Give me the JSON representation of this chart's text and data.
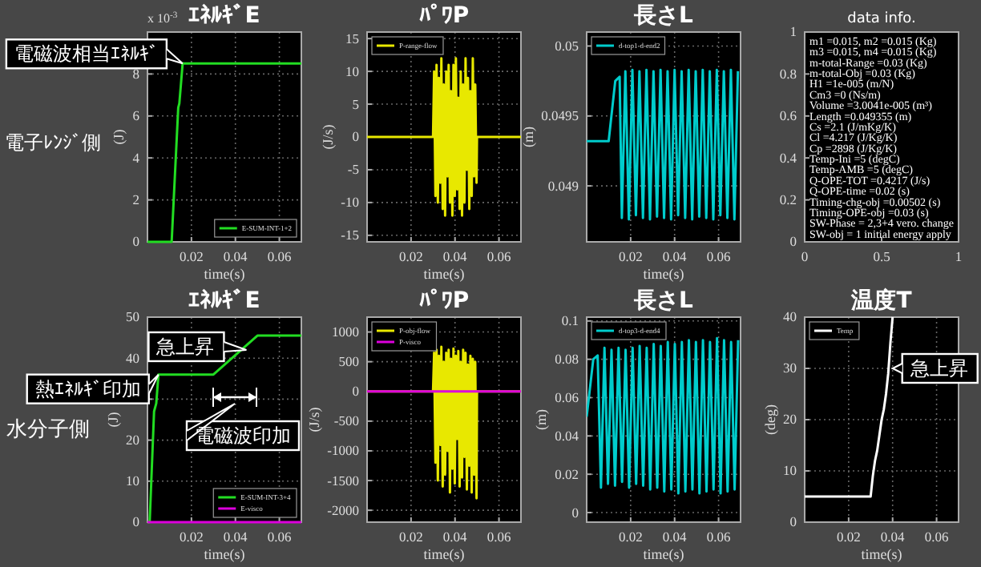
{
  "chart_data": [
    {
      "type": "line",
      "title": "ｴﾈﾙｷﾞE",
      "xlabel": "time(s)",
      "ylabel": "(J)",
      "xlim": [
        0,
        0.07
      ],
      "ylim": [
        0,
        10
      ],
      "xticks": [
        0.02,
        0.04,
        0.06
      ],
      "yticks": [
        0,
        2,
        4,
        6,
        8
      ],
      "grid": true,
      "legend": "bottom right",
      "series": [
        {
          "name": "E-SUM-INT-1+2",
          "color": "#22dd22",
          "x": [
            0,
            0.011,
            0.014,
            0.0145,
            0.016,
            0.07
          ],
          "values": [
            0,
            0,
            6.4,
            6.6,
            8.5,
            8.5
          ]
        }
      ],
      "annotations": [
        {
          "text": "電磁波相当ｴﾈﾙｷﾞ",
          "x": 0.016,
          "y": 8.5
        },
        "x 10$^{-3}$",
        "電子ﾚﾝｼﾞ側"
      ]
    },
    {
      "type": "line",
      "title": "ﾊﾟﾜP",
      "xlabel": "time(s)",
      "ylabel": "(J/s)",
      "xlim": [
        0,
        0.07
      ],
      "ylim": [
        -16,
        16
      ],
      "xticks": [
        0.02,
        0.04,
        0.06
      ],
      "yticks": [
        -15,
        -10,
        -5,
        0,
        5,
        10,
        15
      ],
      "grid": true,
      "legend": "top left",
      "series": [
        {
          "name": "P-range-flow",
          "color": "#e8e800",
          "x": [
            0,
            0.03,
            0.0305,
            0.0311,
            0.0316,
            0.0322,
            0.0327,
            0.0333,
            0.0338,
            0.0344,
            0.0349,
            0.0355,
            0.036,
            0.0366,
            0.0371,
            0.0377,
            0.0382,
            0.0388,
            0.0393,
            0.0399,
            0.0404,
            0.041,
            0.0415,
            0.0421,
            0.0426,
            0.0432,
            0.0437,
            0.0443,
            0.0448,
            0.0454,
            0.0459,
            0.0465,
            0.047,
            0.0476,
            0.0481,
            0.0487,
            0.0492,
            0.0498,
            0.05,
            0.07
          ],
          "values": [
            0,
            0,
            10,
            -9,
            11,
            -10,
            9,
            -7,
            12,
            -11,
            8,
            -12,
            10,
            -6,
            11,
            -10,
            7,
            -12,
            11,
            -9,
            12,
            -8,
            6,
            -11,
            10,
            -12,
            8,
            -10,
            12,
            -5,
            9,
            -11,
            7,
            -9,
            12,
            -6,
            8,
            -7,
            0,
            0
          ]
        }
      ]
    },
    {
      "type": "line",
      "title": "長さL",
      "xlabel": "time(s)",
      "ylabel": "(m)",
      "xlim": [
        0,
        0.07
      ],
      "ylim": [
        0.0486,
        0.0501
      ],
      "xticks": [
        0.02,
        0.04,
        0.06
      ],
      "yticks": [
        0.049,
        0.0495,
        0.05
      ],
      "grid": true,
      "legend": "top left",
      "series": [
        {
          "name": "d-top1-d-end2",
          "color": "#00cccc",
          "x": [
            0,
            0.01,
            0.013,
            0.015,
            0.016,
            0.0176,
            0.0192,
            0.0208,
            0.0224,
            0.024,
            0.0256,
            0.0272,
            0.0288,
            0.0304,
            0.032,
            0.0336,
            0.0352,
            0.0368,
            0.0384,
            0.04,
            0.0416,
            0.0432,
            0.0448,
            0.0464,
            0.048,
            0.0496,
            0.0512,
            0.0528,
            0.0544,
            0.056,
            0.0576,
            0.0592,
            0.0608,
            0.0624,
            0.064,
            0.0656,
            0.0672,
            0.0688
          ],
          "values": [
            0.04932,
            0.04932,
            0.04975,
            0.04978,
            0.04877,
            0.04982,
            0.04876,
            0.04983,
            0.04879,
            0.04982,
            0.04877,
            0.04983,
            0.04876,
            0.04982,
            0.04878,
            0.04983,
            0.04877,
            0.04982,
            0.04876,
            0.04983,
            0.04879,
            0.04982,
            0.04877,
            0.04983,
            0.04876,
            0.04982,
            0.04878,
            0.04983,
            0.04877,
            0.04982,
            0.04876,
            0.04983,
            0.04879,
            0.04982,
            0.04877,
            0.04983,
            0.04876,
            0.04982
          ]
        }
      ]
    },
    {
      "type": "line",
      "title": "data info.",
      "xlim": [
        0,
        1
      ],
      "ylim": [
        0,
        1
      ],
      "xticks": [
        0,
        0.5,
        1
      ],
      "yticks": [
        0,
        0.2,
        0.4,
        0.6,
        0.8,
        1
      ],
      "annotations": [
        "m1 =0.015,  m2 =0.015 (Kg)",
        "m3 =0.015,  m4 =0.015 (Kg)",
        "m-total-Range =0.03 (Kg)",
        "m-total-Obj =0.03 (Kg)",
        "H1 =1e-005 (m/N)",
        "Cm3 =0 (Ns/m)",
        "Volume =3.0041e-005 (m³)",
        "Length =0.049355 (m)",
        "Cs =2.1 (J/mKg/K)",
        "Cl =4.217 (J/Kg/K)",
        "Cp =2898 (J/Kg/K)",
        "Temp-Ini =5 (degC)",
        "Temp-AMB =5 (degC)",
        "Q-OPE-TOT =0.4217 (J/s)",
        "Q-OPE-time =0.02 (s)",
        "Timing-chg-obj =0.00502 (s)",
        "Timing-OPE-obj =0.03 (s)",
        "SW-Phase = 2,3+4 vero. change",
        "SW-obj = 1 initial energy apply"
      ]
    },
    {
      "type": "line",
      "title": "ｴﾈﾙｷﾞE",
      "xlabel": "time(s)",
      "ylabel": "(J)",
      "xlim": [
        0,
        0.07
      ],
      "ylim": [
        0,
        50
      ],
      "xticks": [
        0.02,
        0.04,
        0.06
      ],
      "yticks": [
        0,
        10,
        20,
        30,
        40,
        50
      ],
      "grid": true,
      "legend": "bottom right",
      "series": [
        {
          "name": "E-SUM-INT-3+4",
          "color": "#22dd22",
          "x": [
            0,
            0.001,
            0.003,
            0.004,
            0.005,
            0.03,
            0.05,
            0.07
          ],
          "values": [
            0,
            0,
            27,
            29,
            36,
            36,
            45.5,
            45.5
          ]
        },
        {
          "name": "E-visco",
          "color": "#dd00dd",
          "x": [
            0,
            0.07
          ],
          "values": [
            0,
            0
          ]
        }
      ],
      "annotations": [
        {
          "text": "急上昇",
          "x": 0.045,
          "y": 42
        },
        {
          "text": "熱ｴﾈﾙｷﾞ印加",
          "x": 0.005,
          "y": 36
        },
        "水分子側",
        "電磁波印加"
      ]
    },
    {
      "type": "line",
      "title": "ﾊﾟﾜP",
      "xlabel": "time(s)",
      "ylabel": "(J/s)",
      "xlim": [
        0,
        0.07
      ],
      "ylim": [
        -2200,
        1250
      ],
      "xticks": [
        0.02,
        0.04,
        0.06
      ],
      "yticks": [
        -2000,
        -1500,
        -1000,
        -500,
        0,
        500,
        1000
      ],
      "grid": true,
      "legend": "top left",
      "series": [
        {
          "name": "P-obj-flow",
          "color": "#e8e800",
          "x": [
            0,
            0.03,
            0.0305,
            0.0311,
            0.0316,
            0.0322,
            0.0327,
            0.0333,
            0.0338,
            0.0344,
            0.0349,
            0.0355,
            0.036,
            0.0366,
            0.0371,
            0.0377,
            0.0382,
            0.0388,
            0.0393,
            0.0399,
            0.0404,
            0.041,
            0.0415,
            0.0421,
            0.0426,
            0.0432,
            0.0437,
            0.0443,
            0.0448,
            0.0454,
            0.0459,
            0.0465,
            0.047,
            0.0476,
            0.0481,
            0.0487,
            0.0492,
            0.0498,
            0.05,
            0.07
          ],
          "values": [
            0,
            0,
            650,
            -1200,
            700,
            -1500,
            600,
            -900,
            750,
            -1600,
            500,
            -1400,
            650,
            -1000,
            700,
            -1700,
            550,
            -1300,
            720,
            -1550,
            600,
            -800,
            680,
            -1600,
            500,
            -1450,
            700,
            -1100,
            650,
            -1650,
            450,
            -1250,
            600,
            -1700,
            550,
            -1400,
            500,
            -1800,
            0,
            0
          ]
        },
        {
          "name": "P-visco",
          "color": "#dd00dd",
          "x": [
            0,
            0.07
          ],
          "values": [
            0,
            0
          ]
        }
      ]
    },
    {
      "type": "line",
      "title": "長さL",
      "xlabel": "time(s)",
      "ylabel": "(m)",
      "xlim": [
        0,
        0.07
      ],
      "ylim": [
        -0.005,
        0.102
      ],
      "xticks": [
        0.02,
        0.04,
        0.06
      ],
      "yticks": [
        0,
        0.02,
        0.04,
        0.06,
        0.08,
        0.1
      ],
      "grid": true,
      "legend": "top left",
      "series": [
        {
          "name": "d-top3-d-end4",
          "color": "#00cccc",
          "x": [
            0,
            0.003,
            0.005,
            0.0065,
            0.0081,
            0.0097,
            0.0113,
            0.0129,
            0.0145,
            0.0161,
            0.0177,
            0.0193,
            0.0209,
            0.0225,
            0.0241,
            0.0257,
            0.0273,
            0.0289,
            0.0305,
            0.0321,
            0.0337,
            0.0353,
            0.0369,
            0.0385,
            0.0401,
            0.0417,
            0.0433,
            0.0449,
            0.0465,
            0.0481,
            0.0497,
            0.0513,
            0.0529,
            0.0545,
            0.0561,
            0.0577,
            0.0593,
            0.0609,
            0.0625,
            0.0641,
            0.0657,
            0.0673,
            0.0689
          ],
          "values": [
            0.05,
            0.08,
            0.082,
            0.013,
            0.086,
            0.015,
            0.085,
            0.014,
            0.086,
            0.016,
            0.085,
            0.013,
            0.086,
            0.015,
            0.087,
            0.014,
            0.086,
            0.012,
            0.088,
            0.013,
            0.087,
            0.011,
            0.089,
            0.012,
            0.088,
            0.01,
            0.089,
            0.011,
            0.09,
            0.012,
            0.089,
            0.01,
            0.09,
            0.011,
            0.089,
            0.012,
            0.091,
            0.01,
            0.09,
            0.011,
            0.089,
            0.012,
            0.09
          ]
        }
      ]
    },
    {
      "type": "line",
      "title": "温度T",
      "xlabel": "time(s)",
      "ylabel": "(deg)",
      "xlim": [
        0,
        0.07
      ],
      "ylim": [
        0,
        40
      ],
      "xticks": [
        0.02,
        0.04,
        0.06
      ],
      "yticks": [
        0,
        10,
        20,
        30,
        40
      ],
      "grid": true,
      "legend": "top left",
      "series": [
        {
          "name": "Temp",
          "color": "#ffffff",
          "x": [
            0,
            0.03,
            0.031,
            0.032,
            0.033,
            0.034,
            0.035,
            0.036,
            0.037,
            0.038,
            0.039,
            0.04
          ],
          "values": [
            5,
            5,
            9,
            12,
            14,
            17,
            20,
            22,
            25,
            29,
            35,
            40
          ]
        }
      ],
      "annotations": [
        {
          "text": "急上昇",
          "x": 0.04,
          "y": 30
        }
      ]
    }
  ]
}
